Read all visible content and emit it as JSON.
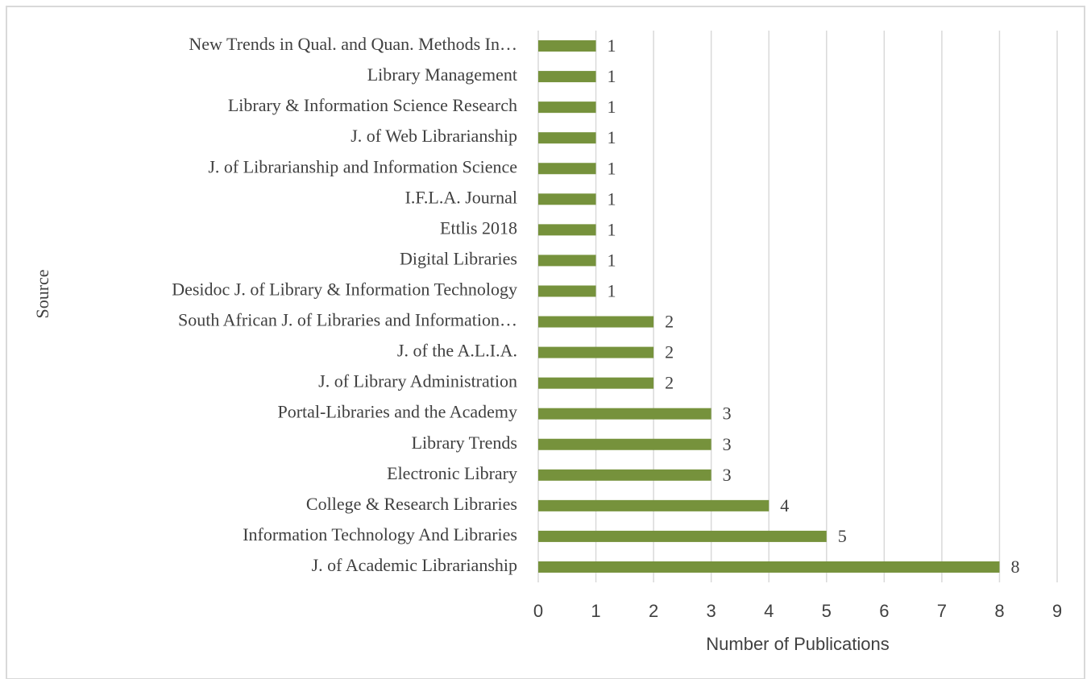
{
  "chart_data": {
    "type": "barh",
    "xlabel": "Number of Publications",
    "ylabel": "Source",
    "categories": [
      "New Trends in Qual. and Quan. Methods In…",
      "Library Management",
      "Library & Information Science Research",
      "J. of Web Librarianship",
      "J. of Librarianship and Information Science",
      "I.F.L.A. Journal",
      "Ettlis 2018",
      "Digital Libraries",
      "Desidoc J. of Library & Information Technology",
      "South African J. of Libraries and Information…",
      "J. of the A.L.I.A.",
      "J. of Library Administration",
      "Portal-Libraries and the Academy",
      "Library Trends",
      "Electronic Library",
      "College & Research Libraries",
      "Information Technology And Libraries",
      "J. of Academic Librarianship"
    ],
    "values": [
      1,
      1,
      1,
      1,
      1,
      1,
      1,
      1,
      1,
      2,
      2,
      2,
      3,
      3,
      3,
      4,
      5,
      8
    ],
    "color": "#76923c",
    "xlim": [
      0,
      9
    ],
    "xticks": [
      0,
      1,
      2,
      3,
      4,
      5,
      6,
      7,
      8,
      9
    ],
    "grid": true
  }
}
